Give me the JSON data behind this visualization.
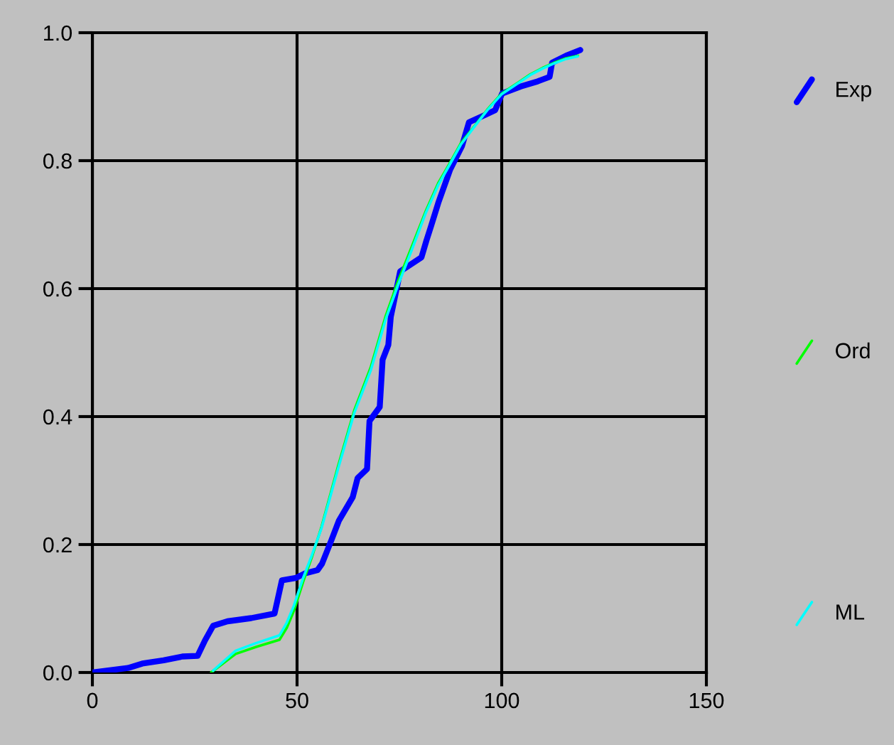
{
  "chart_data": {
    "type": "line",
    "xlim": [
      0,
      150
    ],
    "ylim": [
      0,
      1
    ],
    "xticks": [
      0,
      50,
      100,
      150
    ],
    "yticks": [
      {
        "value": 0,
        "label": "0.0"
      },
      {
        "value": 0.2,
        "label": "0.2"
      },
      {
        "value": 0.4,
        "label": "0.4"
      },
      {
        "value": 0.6,
        "label": "0.6"
      },
      {
        "value": 0.8,
        "label": "0.8"
      },
      {
        "value": 1.0,
        "label": "1.0"
      }
    ],
    "grid": true,
    "legend": "right",
    "line_style": "solid",
    "series": [
      {
        "name": "Exp",
        "color": "#0000ff",
        "x": [
          0,
          8.7,
          12.2,
          17.4,
          22,
          25.7,
          27.5,
          29.5,
          33,
          38.8,
          44.5,
          46.3,
          49.8,
          52,
          55,
          56.1,
          58.4,
          60.2,
          63.6,
          64.8,
          67.1,
          67.7,
          70.2,
          70.9,
          72.3,
          72.9,
          74.1,
          75.2,
          80.4,
          81.6,
          82.7,
          84.5,
          87.4,
          90.3,
          92,
          96.1,
          98.4,
          100.1,
          104.7,
          108.8,
          111.7,
          112.3,
          115.7,
          119.2
        ],
        "values": [
          0,
          0.007,
          0.014,
          0.019,
          0.025,
          0.026,
          0.05,
          0.073,
          0.08,
          0.085,
          0.092,
          0.144,
          0.148,
          0.155,
          0.16,
          0.17,
          0.207,
          0.237,
          0.274,
          0.304,
          0.318,
          0.393,
          0.415,
          0.489,
          0.512,
          0.556,
          0.593,
          0.627,
          0.649,
          0.675,
          0.697,
          0.734,
          0.786,
          0.823,
          0.86,
          0.872,
          0.879,
          0.905,
          0.916,
          0.924,
          0.931,
          0.953,
          0.964,
          0.973
        ]
      },
      {
        "name": "Ord",
        "color": "#00ff00",
        "x": [
          29,
          35,
          40,
          45.7,
          47.5,
          49.2,
          51.5,
          53.6,
          56,
          60,
          64,
          68,
          71.7,
          74.7,
          78,
          81.5,
          84.5,
          87.4,
          90,
          93.2,
          96.5,
          100,
          104,
          107,
          110,
          112.8,
          115.7,
          118.6
        ],
        "values": [
          0,
          0.029,
          0.04,
          0.051,
          0.07,
          0.096,
          0.142,
          0.18,
          0.228,
          0.322,
          0.41,
          0.477,
          0.558,
          0.612,
          0.665,
          0.722,
          0.765,
          0.797,
          0.827,
          0.853,
          0.88,
          0.905,
          0.922,
          0.935,
          0.945,
          0.953,
          0.96,
          0.964
        ]
      },
      {
        "name": "ML",
        "color": "#00ffff",
        "x": [
          29.5,
          35,
          40,
          45.7,
          47.5,
          49.2,
          51.5,
          53.6,
          56,
          60,
          64,
          68,
          71.7,
          74.7,
          78,
          81.5,
          84.5,
          87.4,
          90,
          93.2,
          96.5,
          100,
          104,
          107,
          110,
          112.8,
          115.7,
          118.6
        ],
        "values": [
          0.003,
          0.034,
          0.046,
          0.058,
          0.078,
          0.104,
          0.148,
          0.183,
          0.226,
          0.318,
          0.406,
          0.472,
          0.553,
          0.606,
          0.66,
          0.719,
          0.762,
          0.795,
          0.825,
          0.852,
          0.879,
          0.904,
          0.921,
          0.934,
          0.944,
          0.952,
          0.959,
          0.963
        ]
      }
    ]
  }
}
